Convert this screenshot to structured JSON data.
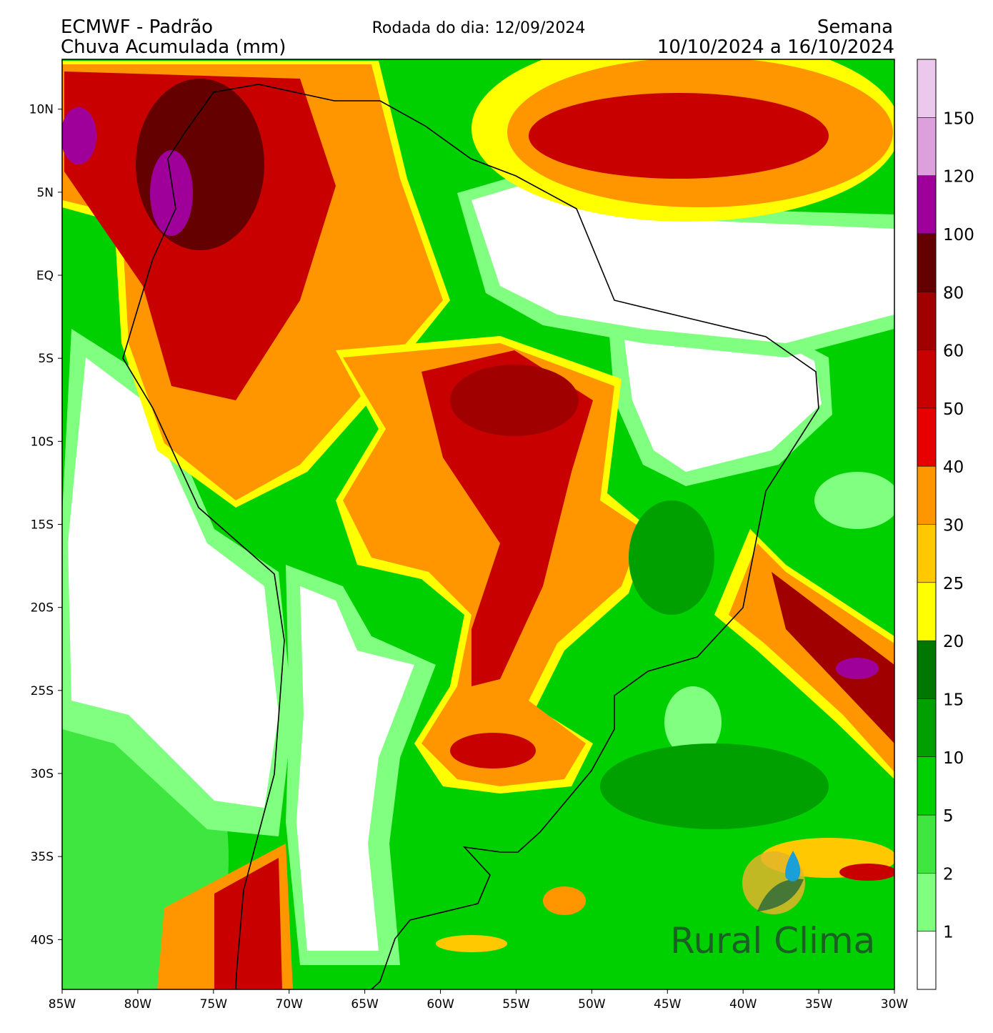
{
  "header": {
    "model": "ECMWF - Padrão",
    "variable": "Chuva Acumulada (mm)",
    "run": "Rodada do dia: 12/09/2024",
    "period_label": "Semana",
    "period": "10/10/2024 a 16/10/2024"
  },
  "map": {
    "xlim": [
      -85,
      -30
    ],
    "ylim": [
      -43,
      13
    ],
    "xticks": [
      {
        "value": -85,
        "label": "85W"
      },
      {
        "value": -80,
        "label": "80W"
      },
      {
        "value": -75,
        "label": "75W"
      },
      {
        "value": -70,
        "label": "70W"
      },
      {
        "value": -65,
        "label": "65W"
      },
      {
        "value": -60,
        "label": "60W"
      },
      {
        "value": -55,
        "label": "55W"
      },
      {
        "value": -50,
        "label": "50W"
      },
      {
        "value": -45,
        "label": "45W"
      },
      {
        "value": -40,
        "label": "40W"
      },
      {
        "value": -35,
        "label": "35W"
      },
      {
        "value": -30,
        "label": "30W"
      }
    ],
    "yticks": [
      {
        "value": 10,
        "label": "10N"
      },
      {
        "value": 5,
        "label": "5N"
      },
      {
        "value": 0,
        "label": "EQ"
      },
      {
        "value": -5,
        "label": "5S"
      },
      {
        "value": -10,
        "label": "10S"
      },
      {
        "value": -15,
        "label": "15S"
      },
      {
        "value": -20,
        "label": "20S"
      },
      {
        "value": -25,
        "label": "25S"
      },
      {
        "value": -30,
        "label": "30S"
      },
      {
        "value": -35,
        "label": "35S"
      },
      {
        "value": -40,
        "label": "40S"
      }
    ]
  },
  "colorbar": {
    "levels": [
      1,
      2,
      5,
      10,
      15,
      20,
      25,
      30,
      40,
      50,
      60,
      80,
      100,
      120,
      150
    ],
    "colors": [
      "#ffffff",
      "#80ff80",
      "#3fe63f",
      "#00d000",
      "#00a000",
      "#007800",
      "#ffff00",
      "#ffc800",
      "#ff9600",
      "#e60000",
      "#c80000",
      "#a00000",
      "#640000",
      "#a0009a",
      "#dca0dc",
      "#ecc8ec"
    ]
  },
  "logo": {
    "name": "Rural Clima"
  }
}
